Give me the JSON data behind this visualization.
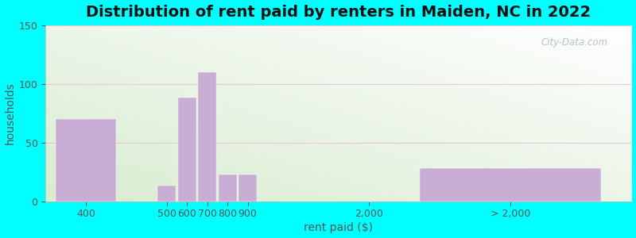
{
  "title": "Distribution of rent paid by renters in Maiden, NC in 2022",
  "xlabel": "rent paid ($)",
  "ylabel": "households",
  "ylim": [
    0,
    150
  ],
  "yticks": [
    0,
    50,
    100,
    150
  ],
  "bar_labels": [
    "400",
    "500",
    "600",
    "700",
    "800",
    "900",
    "2,000",
    "> 2,000"
  ],
  "bar_centers": [
    1.0,
    3.0,
    3.5,
    4.0,
    4.5,
    5.0,
    8.0,
    11.5
  ],
  "bar_widths": [
    1.5,
    0.45,
    0.45,
    0.45,
    0.45,
    0.45,
    0.45,
    4.5
  ],
  "bar_heights": [
    70,
    13,
    88,
    110,
    23,
    23,
    0,
    28
  ],
  "bar_color": "#c8aed4",
  "bg_outer": "#00ffff",
  "bg_inner_topleft": "#d8ecd0",
  "bg_inner_bottomright": "#ffffff",
  "grid_color": "#e8c8d8",
  "title_fontsize": 14,
  "axis_label_fontsize": 10,
  "tick_fontsize": 9,
  "watermark": "City-Data.com",
  "xlim": [
    0,
    14.5
  ]
}
